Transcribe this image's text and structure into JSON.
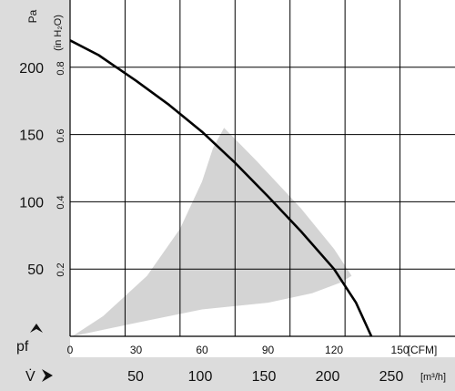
{
  "chart_data": {
    "type": "line",
    "x_primary": {
      "unit": "CFM",
      "ticks": [
        0,
        30,
        60,
        90,
        120,
        150
      ],
      "range": [
        0,
        175
      ]
    },
    "x_secondary": {
      "symbol": "V̇",
      "unit": "m³/h",
      "ticks": [
        50,
        100,
        150,
        200,
        250
      ]
    },
    "y_primary": {
      "symbol": "pf",
      "unit": "Pa",
      "ticks": [
        50,
        100,
        150,
        200
      ],
      "range": [
        0,
        250
      ]
    },
    "y_secondary": {
      "unit": "(in H₂O)",
      "ticks": [
        0.2,
        0.4,
        0.6,
        0.8
      ]
    },
    "grid": true,
    "series": [
      {
        "x": [
          0,
          13,
          30,
          45,
          60,
          75,
          90,
          105,
          120,
          130,
          137
        ],
        "y": [
          220,
          209,
          190,
          172,
          152,
          129,
          104,
          78,
          50,
          25,
          0
        ]
      }
    ],
    "shaded_region": {
      "x": [
        1,
        30,
        60,
        90,
        110,
        123,
        128,
        120,
        105,
        85,
        70,
        65,
        60,
        50,
        35,
        15,
        1
      ],
      "y": [
        0,
        10,
        20,
        25,
        32,
        40,
        45,
        65,
        95,
        130,
        155,
        140,
        115,
        80,
        45,
        15,
        0
      ],
      "color": "#d4d4d4"
    },
    "colors": {
      "curve": "#000000",
      "shade": "#d4d4d4",
      "panel": "#dcdcdc",
      "grid": "#000000"
    }
  }
}
